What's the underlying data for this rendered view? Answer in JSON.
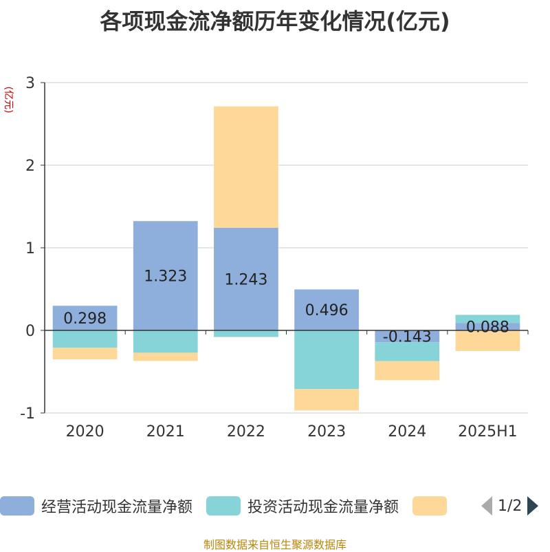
{
  "title": "各项现金流净额历年变化情况(亿元)",
  "source": "制图数据来自恒生聚源数据库",
  "pager": {
    "text": "1/2"
  },
  "colors": {
    "operating": "#8eaedb",
    "investing": "#86d4d8",
    "financing": "#fdd898",
    "axis": "#333333",
    "grid": "#cccccc",
    "unit": "#cc0000"
  },
  "chart_data": {
    "type": "bar",
    "stacked": true,
    "title": "各项现金流净额历年变化情况(亿元)",
    "ylabel": "(亿元)",
    "ylim": [
      -1,
      3
    ],
    "yticks": [
      -1,
      0,
      1,
      2,
      3
    ],
    "categories": [
      "2020",
      "2021",
      "2022",
      "2023",
      "2024",
      "2025H1"
    ],
    "series": [
      {
        "name": "经营活动现金流量净额",
        "values": [
          0.298,
          1.323,
          1.243,
          0.496,
          -0.143,
          0.088
        ],
        "labels": [
          "0.298",
          "1.323",
          "1.243",
          "0.496",
          "-0.143",
          "0.088"
        ]
      },
      {
        "name": "投资活动现金流量净额",
        "values": [
          -0.21,
          -0.27,
          -0.08,
          -0.71,
          -0.23,
          0.1
        ]
      },
      {
        "name": "",
        "values": [
          -0.14,
          -0.1,
          1.47,
          -0.26,
          -0.23,
          -0.25
        ]
      }
    ],
    "grid": true,
    "legend_position": "bottom"
  }
}
